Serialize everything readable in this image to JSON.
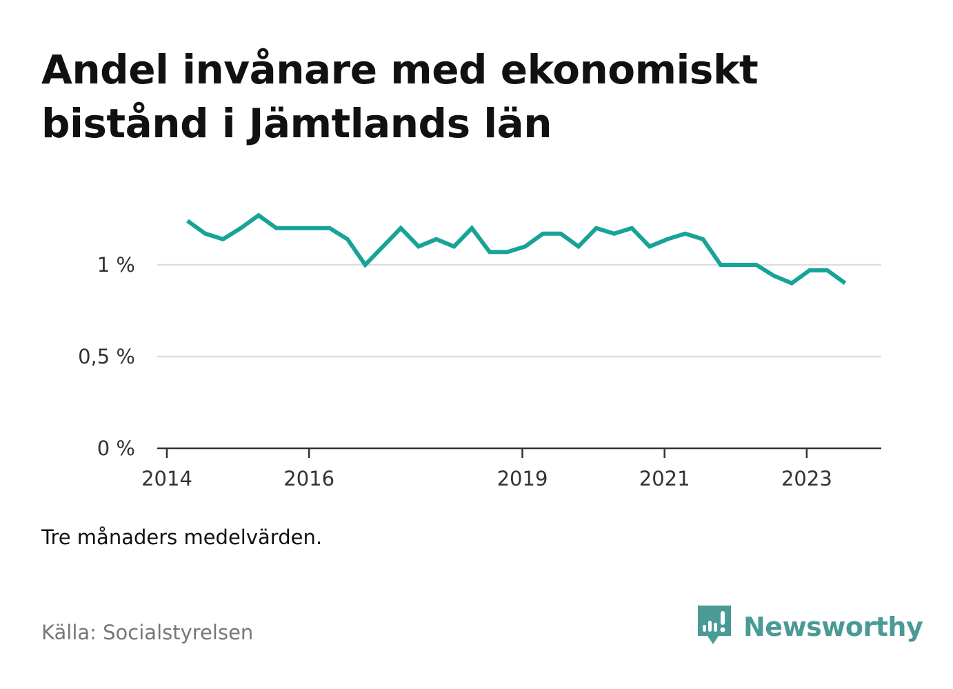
{
  "title": {
    "line1": "Andel invånare med ekonomiskt",
    "line2": "bistånd i Jämtlands län"
  },
  "note": "Tre månaders medelvärden.",
  "source": "Källa: Socialstyrelsen",
  "brand": {
    "name": "Newsworthy",
    "icon": "bar-chart-speech-bubble-icon",
    "color": "#4a9a95"
  },
  "colors": {
    "line": "#17a398",
    "grid": "#dddddd",
    "axis": "#333333"
  },
  "chart_data": {
    "type": "line",
    "title": "Andel invånare med ekonomiskt bistånd i Jämtlands län",
    "xlabel": "",
    "ylabel": "",
    "unit": "%",
    "ylim": [
      0,
      1.45
    ],
    "xlim": [
      2014.0,
      2024.0
    ],
    "grid": true,
    "y_ticks": [
      {
        "value": 0,
        "label": "0 %"
      },
      {
        "value": 0.5,
        "label": "0,5 %"
      },
      {
        "value": 1,
        "label": "1 %"
      }
    ],
    "x_ticks": [
      {
        "value": 2014,
        "label": "2014"
      },
      {
        "value": 2016,
        "label": "2016"
      },
      {
        "value": 2019,
        "label": "2019"
      },
      {
        "value": 2021,
        "label": "2021"
      },
      {
        "value": 2023,
        "label": "2023"
      }
    ],
    "series": [
      {
        "x": [
          2014.29,
          2014.54,
          2014.79,
          2015.04,
          2015.29,
          2015.54,
          2015.79,
          2016.04,
          2016.29,
          2016.54,
          2016.79,
          2017.04,
          2017.29,
          2017.54,
          2017.79,
          2018.04,
          2018.29,
          2018.54,
          2018.79,
          2019.04,
          2019.29,
          2019.54,
          2019.79,
          2020.04,
          2020.29,
          2020.54,
          2020.79,
          2021.04,
          2021.29,
          2021.54,
          2021.79,
          2022.04,
          2022.29,
          2022.54,
          2022.79,
          2023.04,
          2023.29,
          2023.54
        ],
        "values": [
          1.24,
          1.17,
          1.14,
          1.2,
          1.27,
          1.2,
          1.2,
          1.2,
          1.2,
          1.14,
          1.0,
          1.1,
          1.2,
          1.1,
          1.14,
          1.1,
          1.2,
          1.07,
          1.07,
          1.1,
          1.17,
          1.17,
          1.1,
          1.2,
          1.17,
          1.2,
          1.1,
          1.14,
          1.17,
          1.14,
          1.0,
          1.0,
          1.0,
          0.94,
          0.9,
          0.97,
          0.97,
          0.9
        ]
      }
    ]
  }
}
